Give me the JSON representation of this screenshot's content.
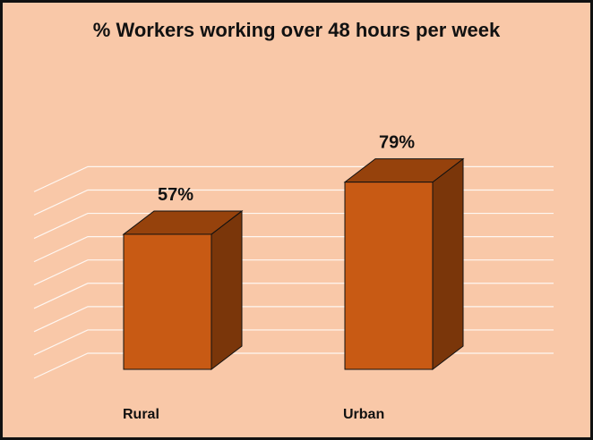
{
  "chart_data": {
    "type": "bar",
    "title": "% Workers working over 48 hours per week",
    "categories": [
      "Rural",
      "Urban"
    ],
    "values": [
      57,
      79
    ],
    "data_labels": [
      "57%",
      "79%"
    ],
    "ylim": [
      0,
      100
    ],
    "grid": true,
    "legend": "none",
    "style": "3d",
    "colors": {
      "background": "#f9c8a8",
      "bar_front": "#c85a14",
      "bar_top": "#96420c",
      "bar_side": "#7a360a",
      "grid": "#ffffff"
    }
  }
}
